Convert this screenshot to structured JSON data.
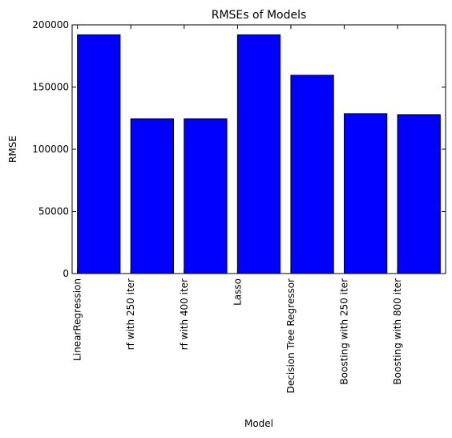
{
  "chart_data": {
    "type": "bar",
    "title": "RMSEs of Models",
    "xlabel": "Model",
    "ylabel": "RMSE",
    "categories": [
      "LinearRegression",
      "rf with 250 iter",
      "rf with 400 iter",
      "Lasso",
      "Decision Tree Regressor",
      "Boosting with 250 iter",
      "Boosting with 800 iter"
    ],
    "values": [
      192000,
      124500,
      124500,
      192000,
      159500,
      128500,
      127800
    ],
    "ylim": [
      0,
      200000
    ],
    "yticks": [
      "0",
      "50000",
      "100000",
      "150000",
      "200000"
    ],
    "grid": false,
    "legend": "none",
    "bar_color": "#0000ff",
    "edge_color": "#000000"
  }
}
